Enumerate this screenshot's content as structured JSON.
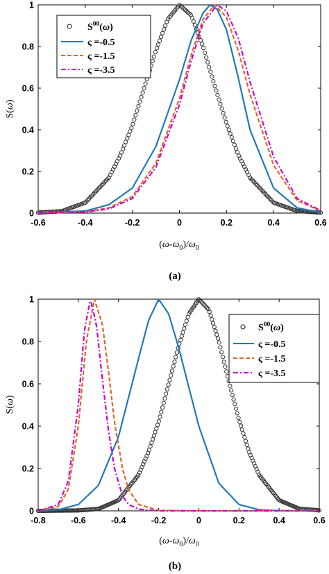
{
  "colors": {
    "measured": "#333333",
    "s05": "#1f7ab8",
    "s15": "#e0662a",
    "s35": "#cc00cc"
  },
  "chart_data": [
    {
      "panel_label": "(a)",
      "type": "line",
      "xlabel": "(ω-ω0)/ω0",
      "ylabel": "S(ω)",
      "xlim": [
        -0.6,
        0.6
      ],
      "ylim": [
        0,
        1
      ],
      "xticks": [
        "-0.6",
        "-0.4",
        "-0.2",
        "0",
        "0.2",
        "0.4",
        "0.6"
      ],
      "yticks": [
        "0",
        "0.2",
        "0.4",
        "0.6",
        "0.8",
        "1"
      ],
      "legend_position": "top-left",
      "series": [
        {
          "name": "S00(ω)",
          "style": "circles",
          "x": [
            -0.6,
            -0.5,
            -0.4,
            -0.3,
            -0.25,
            -0.2,
            -0.15,
            -0.1,
            -0.05,
            0,
            0.05,
            0.1,
            0.15,
            0.2,
            0.25,
            0.3,
            0.4,
            0.5,
            0.6
          ],
          "y": [
            0.002,
            0.009,
            0.05,
            0.17,
            0.28,
            0.42,
            0.6,
            0.78,
            0.93,
            1.0,
            0.95,
            0.8,
            0.61,
            0.43,
            0.28,
            0.17,
            0.05,
            0.01,
            0.002
          ]
        },
        {
          "name": "ς =-0.5",
          "style": "solid",
          "x": [
            -0.6,
            -0.4,
            -0.3,
            -0.2,
            -0.1,
            0,
            0.05,
            0.1,
            0.13,
            0.16,
            0.2,
            0.25,
            0.3,
            0.4,
            0.5,
            0.6
          ],
          "y": [
            0.001,
            0.01,
            0.04,
            0.12,
            0.32,
            0.64,
            0.83,
            0.96,
            1.0,
            0.98,
            0.88,
            0.65,
            0.4,
            0.12,
            0.025,
            0.003
          ]
        },
        {
          "name": "ς =-1.5",
          "style": "dashed",
          "x": [
            -0.6,
            -0.4,
            -0.3,
            -0.2,
            -0.1,
            0,
            0.05,
            0.1,
            0.15,
            0.2,
            0.25,
            0.3,
            0.4,
            0.5,
            0.6
          ],
          "y": [
            0.001,
            0.006,
            0.025,
            0.08,
            0.24,
            0.55,
            0.76,
            0.93,
            1.0,
            0.94,
            0.78,
            0.57,
            0.23,
            0.06,
            0.01
          ]
        },
        {
          "name": "ς =-3.5",
          "style": "dashdot",
          "x": [
            -0.6,
            -0.4,
            -0.3,
            -0.2,
            -0.1,
            0,
            0.05,
            0.1,
            0.16,
            0.2,
            0.25,
            0.3,
            0.4,
            0.5,
            0.6
          ],
          "y": [
            0.001,
            0.005,
            0.02,
            0.07,
            0.22,
            0.52,
            0.73,
            0.91,
            1.0,
            0.97,
            0.84,
            0.63,
            0.27,
            0.07,
            0.012
          ]
        }
      ]
    },
    {
      "panel_label": "(b)",
      "type": "line",
      "xlabel": "(ω-ω0)/ω0",
      "ylabel": "S(ω)",
      "xlim": [
        -0.8,
        0.6
      ],
      "ylim": [
        0,
        1
      ],
      "xticks": [
        "-0.8",
        "-0.6",
        "-0.4",
        "-0.2",
        "0",
        "0.2",
        "0.4",
        "0.6"
      ],
      "yticks": [
        "0",
        "0.2",
        "0.4",
        "0.6",
        "0.8",
        "1"
      ],
      "legend_position": "top-right",
      "series": [
        {
          "name": "S00(ω)",
          "style": "circles",
          "x": [
            -0.8,
            -0.6,
            -0.5,
            -0.4,
            -0.3,
            -0.25,
            -0.2,
            -0.15,
            -0.1,
            -0.05,
            0,
            0.05,
            0.1,
            0.15,
            0.2,
            0.25,
            0.3,
            0.4,
            0.5,
            0.6
          ],
          "y": [
            0.0,
            0.002,
            0.009,
            0.05,
            0.17,
            0.28,
            0.42,
            0.6,
            0.78,
            0.93,
            1.0,
            0.95,
            0.8,
            0.61,
            0.43,
            0.28,
            0.17,
            0.05,
            0.01,
            0.002
          ]
        },
        {
          "name": "ς =-0.5",
          "style": "solid",
          "x": [
            -0.8,
            -0.7,
            -0.6,
            -0.5,
            -0.4,
            -0.3,
            -0.25,
            -0.2,
            -0.15,
            -0.1,
            0,
            0.1,
            0.2,
            0.3,
            0.4,
            0.6
          ],
          "y": [
            0.0,
            0.005,
            0.03,
            0.12,
            0.35,
            0.72,
            0.9,
            1.0,
            0.93,
            0.77,
            0.4,
            0.13,
            0.03,
            0.005,
            0.001,
            0.0
          ]
        },
        {
          "name": "ς =-1.5",
          "style": "dashed",
          "x": [
            -0.8,
            -0.7,
            -0.65,
            -0.6,
            -0.56,
            -0.52,
            -0.48,
            -0.45,
            -0.42,
            -0.38,
            -0.35,
            -0.3,
            -0.2,
            0,
            0.6
          ],
          "y": [
            0.0,
            0.02,
            0.1,
            0.4,
            0.8,
            1.0,
            0.88,
            0.66,
            0.42,
            0.2,
            0.1,
            0.03,
            0.002,
            0.0,
            0.0
          ]
        },
        {
          "name": "ς =-3.5",
          "style": "dashdot",
          "x": [
            -0.8,
            -0.7,
            -0.65,
            -0.6,
            -0.57,
            -0.54,
            -0.51,
            -0.48,
            -0.45,
            -0.42,
            -0.38,
            -0.35,
            -0.3,
            -0.2,
            0,
            0.6
          ],
          "y": [
            0.0,
            0.03,
            0.14,
            0.5,
            0.85,
            1.0,
            0.88,
            0.62,
            0.38,
            0.2,
            0.07,
            0.03,
            0.008,
            0.0,
            0.0,
            0.0
          ]
        }
      ]
    }
  ]
}
